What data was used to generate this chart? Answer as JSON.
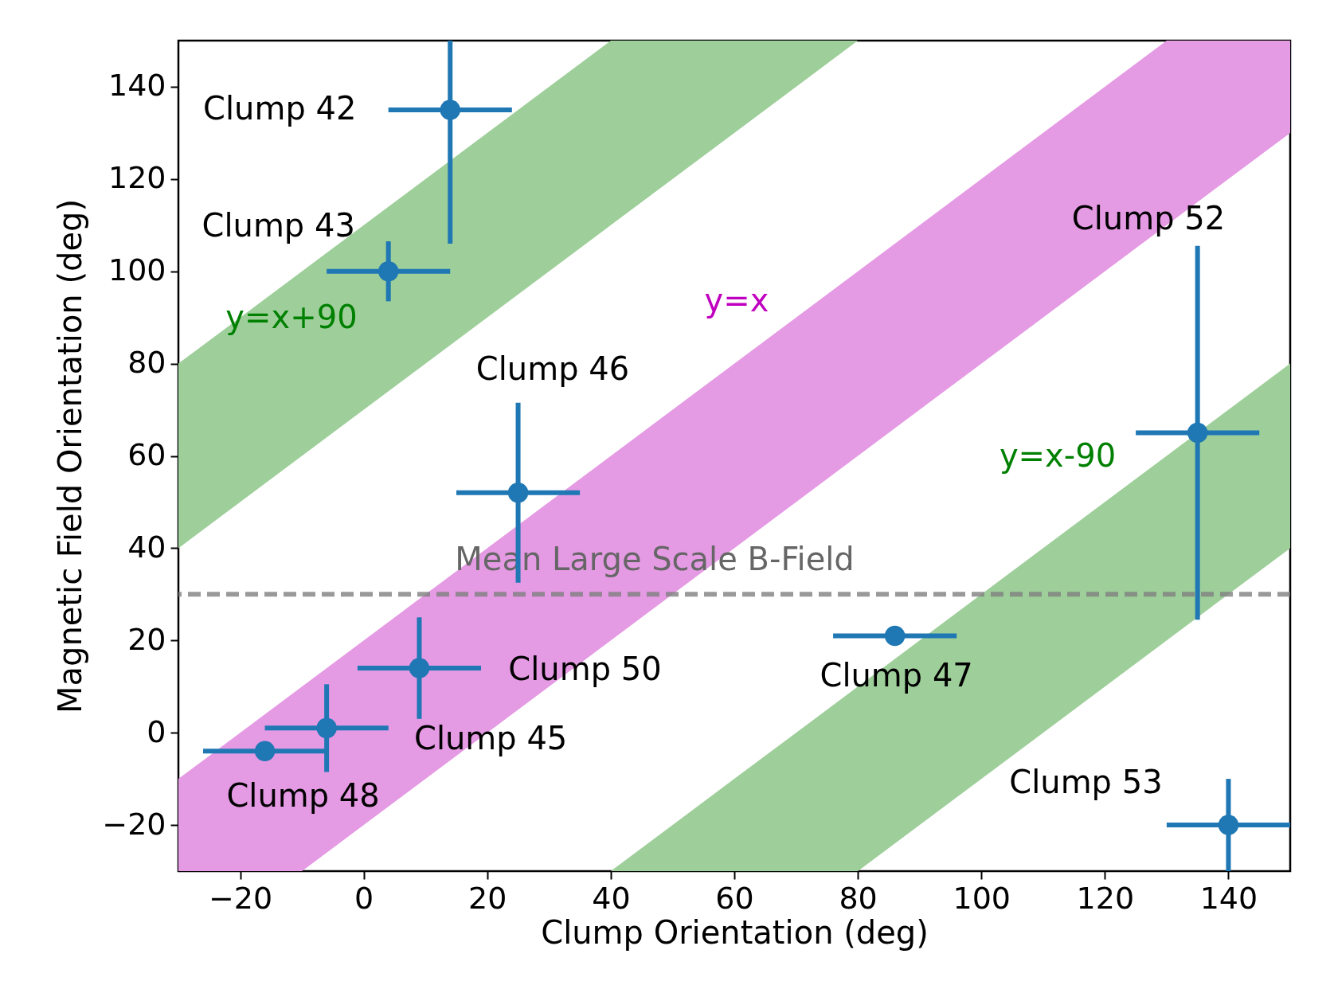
{
  "chart_data": {
    "type": "scatter",
    "xlabel": "Clump Orientation (deg)",
    "ylabel": "Magnetic Field Orientation (deg)",
    "xlim": [
      -30,
      150
    ],
    "ylim": [
      -30,
      150
    ],
    "xticks": [
      -20,
      0,
      20,
      40,
      60,
      80,
      100,
      120,
      140
    ],
    "yticks": [
      -20,
      0,
      20,
      40,
      60,
      80,
      100,
      120,
      140
    ],
    "marker": "circle",
    "series": [
      {
        "type": "line",
        "color": "#9ecf9a",
        "x": [
          -30,
          40,
          60,
          80
        ],
        "values": [
          null,
          null,
          null,
          null
        ],
        "lower": [
          40,
          110,
          130,
          150
        ],
        "upper": [
          80,
          150,
          150,
          150
        ]
      },
      {
        "type": "line",
        "color": "#e59ae4",
        "x": [
          -30,
          -10,
          130,
          150
        ],
        "values": [
          null,
          null,
          null,
          null
        ],
        "lower": [
          -30,
          -30,
          110,
          130
        ],
        "upper": [
          -10,
          10,
          150,
          150
        ]
      },
      {
        "type": "line",
        "color": "#9ecf9a",
        "x": [
          40,
          60,
          80,
          150
        ],
        "values": [
          null,
          null,
          null,
          null
        ],
        "lower": [
          -30,
          -30,
          -30,
          40
        ],
        "upper": [
          -30,
          -10,
          10,
          80
        ]
      },
      {
        "color": "#1f77b4",
        "x": [
          14,
          4,
          25,
          135,
          86,
          9,
          -6,
          -16,
          140
        ],
        "values": [
          135,
          100,
          52,
          65,
          21,
          14,
          1,
          -4,
          -20
        ],
        "errors": [
          29,
          6.5,
          19.5,
          40.5,
          null,
          11,
          9.5,
          null,
          10
        ],
        "xerrors": [
          10,
          10,
          10,
          10,
          10,
          10,
          10,
          10,
          10
        ]
      }
    ],
    "ref_lines": [
      {
        "axis": "y",
        "value": 30,
        "label": "Mean Large Scale B-Field",
        "color": "#808080",
        "line_style": "dashed"
      }
    ],
    "annotations": [
      {
        "text": "Clump 42",
        "x": 14,
        "y": 135
      },
      {
        "text": "Clump 43",
        "x": 4,
        "y": 100
      },
      "Clump 46",
      "Clump 52",
      {
        "text": "Clump 47",
        "x": 86,
        "y": 21
      },
      {
        "text": "Clump 50",
        "x": 9,
        "y": 14
      },
      {
        "text": "Clump 45",
        "x": -6,
        "y": 1
      },
      {
        "text": "Clump 48",
        "x": -16,
        "y": -4
      },
      {
        "text": "Clump 53",
        "x": 140,
        "y": -20
      },
      "y=x+90",
      "y=x",
      "y=x-90"
    ]
  }
}
